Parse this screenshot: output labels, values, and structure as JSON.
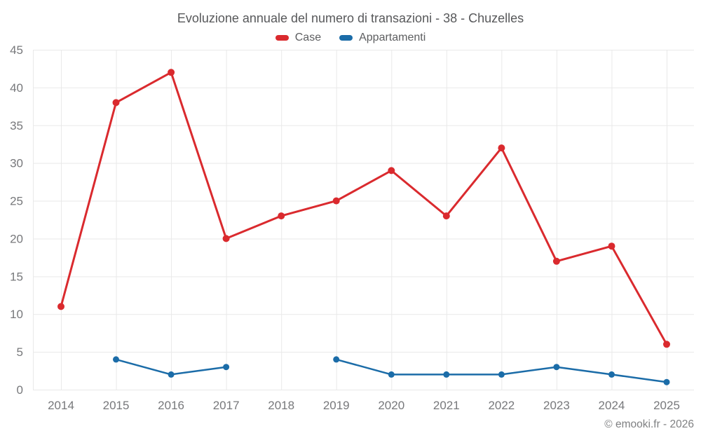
{
  "header": {
    "title": "Evoluzione annuale del numero di transazioni - 38 - Chuzelles"
  },
  "footer": {
    "copyright": "© emooki.fr - 2026"
  },
  "chart_data": {
    "type": "line",
    "title": "Evoluzione annuale del numero di transazioni - 38 - Chuzelles",
    "categories": [
      "2014",
      "2015",
      "2016",
      "2017",
      "2018",
      "2019",
      "2020",
      "2021",
      "2022",
      "2023",
      "2024",
      "2025"
    ],
    "series": [
      {
        "name": "Case",
        "color": "#da2a2e",
        "values": [
          11,
          38,
          42,
          20,
          23,
          25,
          29,
          23,
          32,
          17,
          19,
          6
        ]
      },
      {
        "name": "Appartamenti",
        "color": "#1b6ca8",
        "values": [
          null,
          4,
          2,
          3,
          null,
          4,
          2,
          2,
          2,
          3,
          2,
          1
        ]
      }
    ],
    "xlabel": "",
    "ylabel": "",
    "ylim": [
      0,
      45
    ],
    "ytick_step": 5,
    "grid": true,
    "grid_color": "#e9e9e9",
    "axis_text_color": "#77787b",
    "legend_position": "top"
  }
}
